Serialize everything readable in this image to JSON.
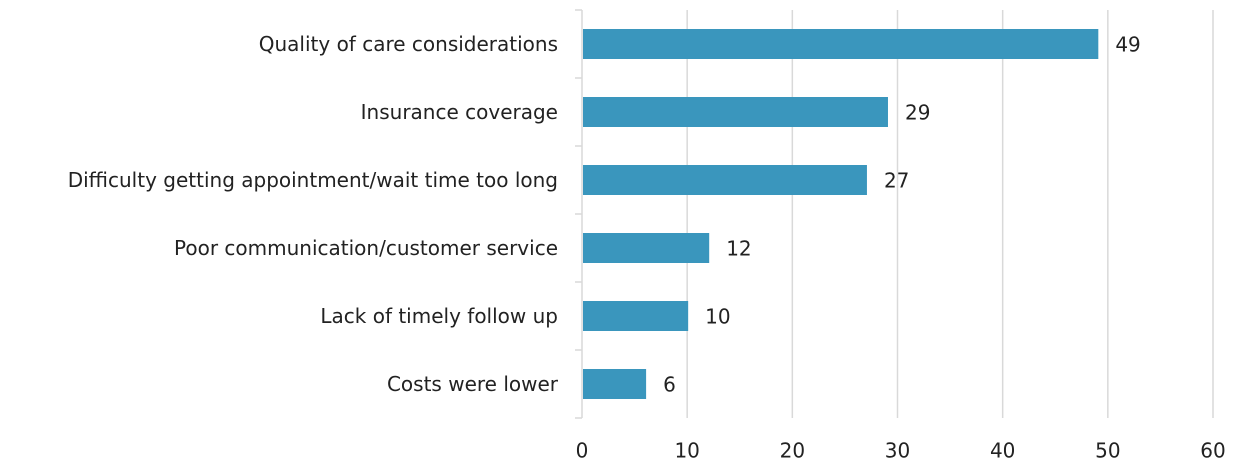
{
  "chart_data": {
    "type": "bar",
    "orientation": "horizontal",
    "categories": [
      "Quality of care considerations",
      "Insurance coverage",
      "Difficulty getting appointment/wait time too long",
      "Poor communication/customer service",
      "Lack of timely follow up",
      "Costs were lower"
    ],
    "values": [
      49,
      29,
      27,
      12,
      10,
      6
    ],
    "color": "#3a96bd",
    "xlim": [
      0,
      60
    ],
    "xticks": [
      0,
      10,
      20,
      30,
      40,
      50,
      60
    ],
    "grid": true
  }
}
